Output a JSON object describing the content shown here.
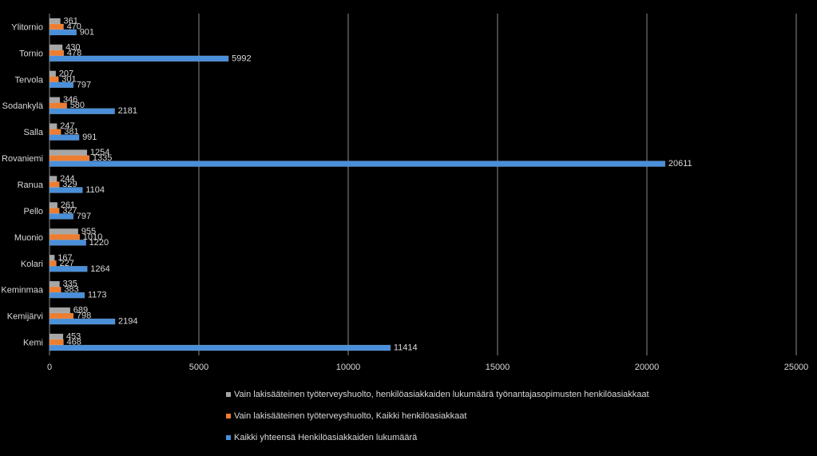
{
  "chart_data": {
    "type": "bar",
    "orientation": "horizontal",
    "categories": [
      "Ylitornio",
      "Tornio",
      "Tervola",
      "Sodankylä",
      "Salla",
      "Rovaniemi",
      "Ranua",
      "Pello",
      "Muonio",
      "Kolari",
      "Keminmaa",
      "Kemijärvi",
      "Kemi"
    ],
    "series": [
      {
        "name": "Vain lakisääteinen työterveyshuolto, henkilöasiakkaiden lukumäärä työnantajasopimusten henkilöasiakkaat",
        "color": "#a6a6a6",
        "values": [
          361,
          430,
          207,
          346,
          247,
          1254,
          244,
          261,
          955,
          167,
          335,
          689,
          453
        ]
      },
      {
        "name": "Vain lakisääteinen työterveyshuolto, Kaikki henkilöasiakkaat",
        "color": "#ed7d31",
        "values": [
          470,
          478,
          301,
          580,
          381,
          1335,
          329,
          327,
          1010,
          227,
          383,
          798,
          468
        ]
      },
      {
        "name": "Kaikki yhteensä Henkilöasiakkaiden lukumäärä",
        "color": "#4a8fd9",
        "values": [
          901,
          5992,
          797,
          2181,
          991,
          20611,
          1104,
          797,
          1220,
          1264,
          1173,
          2194,
          11414
        ]
      }
    ],
    "x_ticks": [
      "0",
      "5000",
      "10000",
      "15000",
      "20000",
      "25000"
    ],
    "xlim": [
      0,
      25000
    ],
    "grid": true,
    "legend_position": "bottom"
  }
}
